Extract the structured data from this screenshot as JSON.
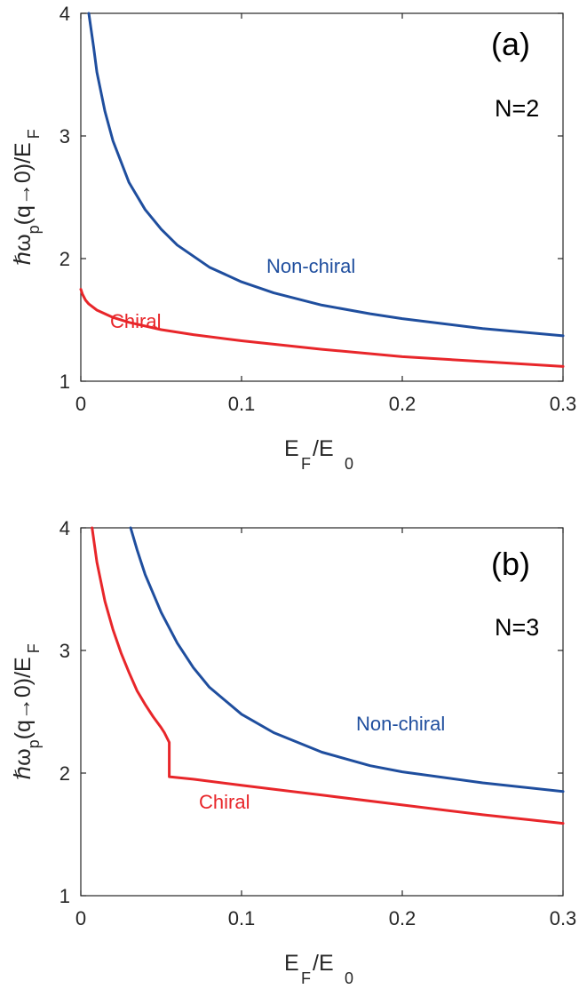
{
  "colors": {
    "chiral": "#e8262a",
    "non_chiral": "#1f4e9e",
    "axis": "#262626"
  },
  "chart_data": [
    {
      "type": "line",
      "panel_label": "(a)",
      "annotation": "N=2",
      "xlabel": {
        "main": "E",
        "sub1": "F",
        "slash": "/E",
        "sub2": "0"
      },
      "ylabel": {
        "main": "ℏω",
        "sub1": "p",
        "mid": "(q→0)/E",
        "sub2": "F"
      },
      "xlim": [
        0,
        0.3
      ],
      "ylim": [
        1,
        4
      ],
      "xticks": [
        "0",
        "0.1",
        "0.2",
        "0.3"
      ],
      "yticks": [
        "1",
        "2",
        "3",
        "4"
      ],
      "series": [
        {
          "name": "Non-chiral",
          "color": "#1f4e9e",
          "points": [
            [
              0.005,
              4.0
            ],
            [
              0.008,
              3.72
            ],
            [
              0.01,
              3.52
            ],
            [
              0.015,
              3.2
            ],
            [
              0.02,
              2.96
            ],
            [
              0.03,
              2.62
            ],
            [
              0.04,
              2.4
            ],
            [
              0.05,
              2.24
            ],
            [
              0.06,
              2.11
            ],
            [
              0.08,
              1.93
            ],
            [
              0.1,
              1.81
            ],
            [
              0.12,
              1.72
            ],
            [
              0.15,
              1.62
            ],
            [
              0.18,
              1.55
            ],
            [
              0.2,
              1.51
            ],
            [
              0.25,
              1.43
            ],
            [
              0.3,
              1.37
            ]
          ]
        },
        {
          "name": "Chiral",
          "color": "#e8262a",
          "points": [
            [
              0.0,
              1.75
            ],
            [
              0.001,
              1.71
            ],
            [
              0.003,
              1.66
            ],
            [
              0.005,
              1.63
            ],
            [
              0.01,
              1.58
            ],
            [
              0.02,
              1.52
            ],
            [
              0.03,
              1.48
            ],
            [
              0.05,
              1.42
            ],
            [
              0.07,
              1.38
            ],
            [
              0.1,
              1.33
            ],
            [
              0.15,
              1.26
            ],
            [
              0.2,
              1.2
            ],
            [
              0.25,
              1.16
            ],
            [
              0.3,
              1.12
            ]
          ]
        }
      ]
    },
    {
      "type": "line",
      "panel_label": "(b)",
      "annotation": "N=3",
      "xlabel": {
        "main": "E",
        "sub1": "F",
        "slash": "/E",
        "sub2": "0"
      },
      "ylabel": {
        "main": "ℏω",
        "sub1": "p",
        "mid": "(q→0)/E",
        "sub2": "F"
      },
      "xlim": [
        0,
        0.3
      ],
      "ylim": [
        1,
        4
      ],
      "xticks": [
        "0",
        "0.1",
        "0.2",
        "0.3"
      ],
      "yticks": [
        "1",
        "2",
        "3",
        "4"
      ],
      "series": [
        {
          "name": "Non-chiral",
          "color": "#1f4e9e",
          "points": [
            [
              0.031,
              4.0
            ],
            [
              0.035,
              3.82
            ],
            [
              0.04,
              3.62
            ],
            [
              0.05,
              3.31
            ],
            [
              0.06,
              3.06
            ],
            [
              0.07,
              2.86
            ],
            [
              0.08,
              2.7
            ],
            [
              0.1,
              2.48
            ],
            [
              0.12,
              2.33
            ],
            [
              0.15,
              2.17
            ],
            [
              0.18,
              2.06
            ],
            [
              0.2,
              2.01
            ],
            [
              0.25,
              1.92
            ],
            [
              0.3,
              1.85
            ]
          ]
        },
        {
          "name": "Chiral",
          "color": "#e8262a",
          "points": [
            [
              0.007,
              4.0
            ],
            [
              0.01,
              3.72
            ],
            [
              0.015,
              3.4
            ],
            [
              0.02,
              3.17
            ],
            [
              0.025,
              2.98
            ],
            [
              0.03,
              2.82
            ],
            [
              0.035,
              2.67
            ],
            [
              0.04,
              2.56
            ],
            [
              0.045,
              2.46
            ],
            [
              0.05,
              2.37
            ],
            [
              0.052,
              2.33
            ],
            [
              0.055,
              2.25
            ],
            [
              0.055,
              1.97
            ],
            [
              0.07,
              1.95
            ],
            [
              0.1,
              1.9
            ],
            [
              0.15,
              1.82
            ],
            [
              0.2,
              1.74
            ],
            [
              0.25,
              1.66
            ],
            [
              0.3,
              1.59
            ]
          ]
        }
      ]
    }
  ]
}
